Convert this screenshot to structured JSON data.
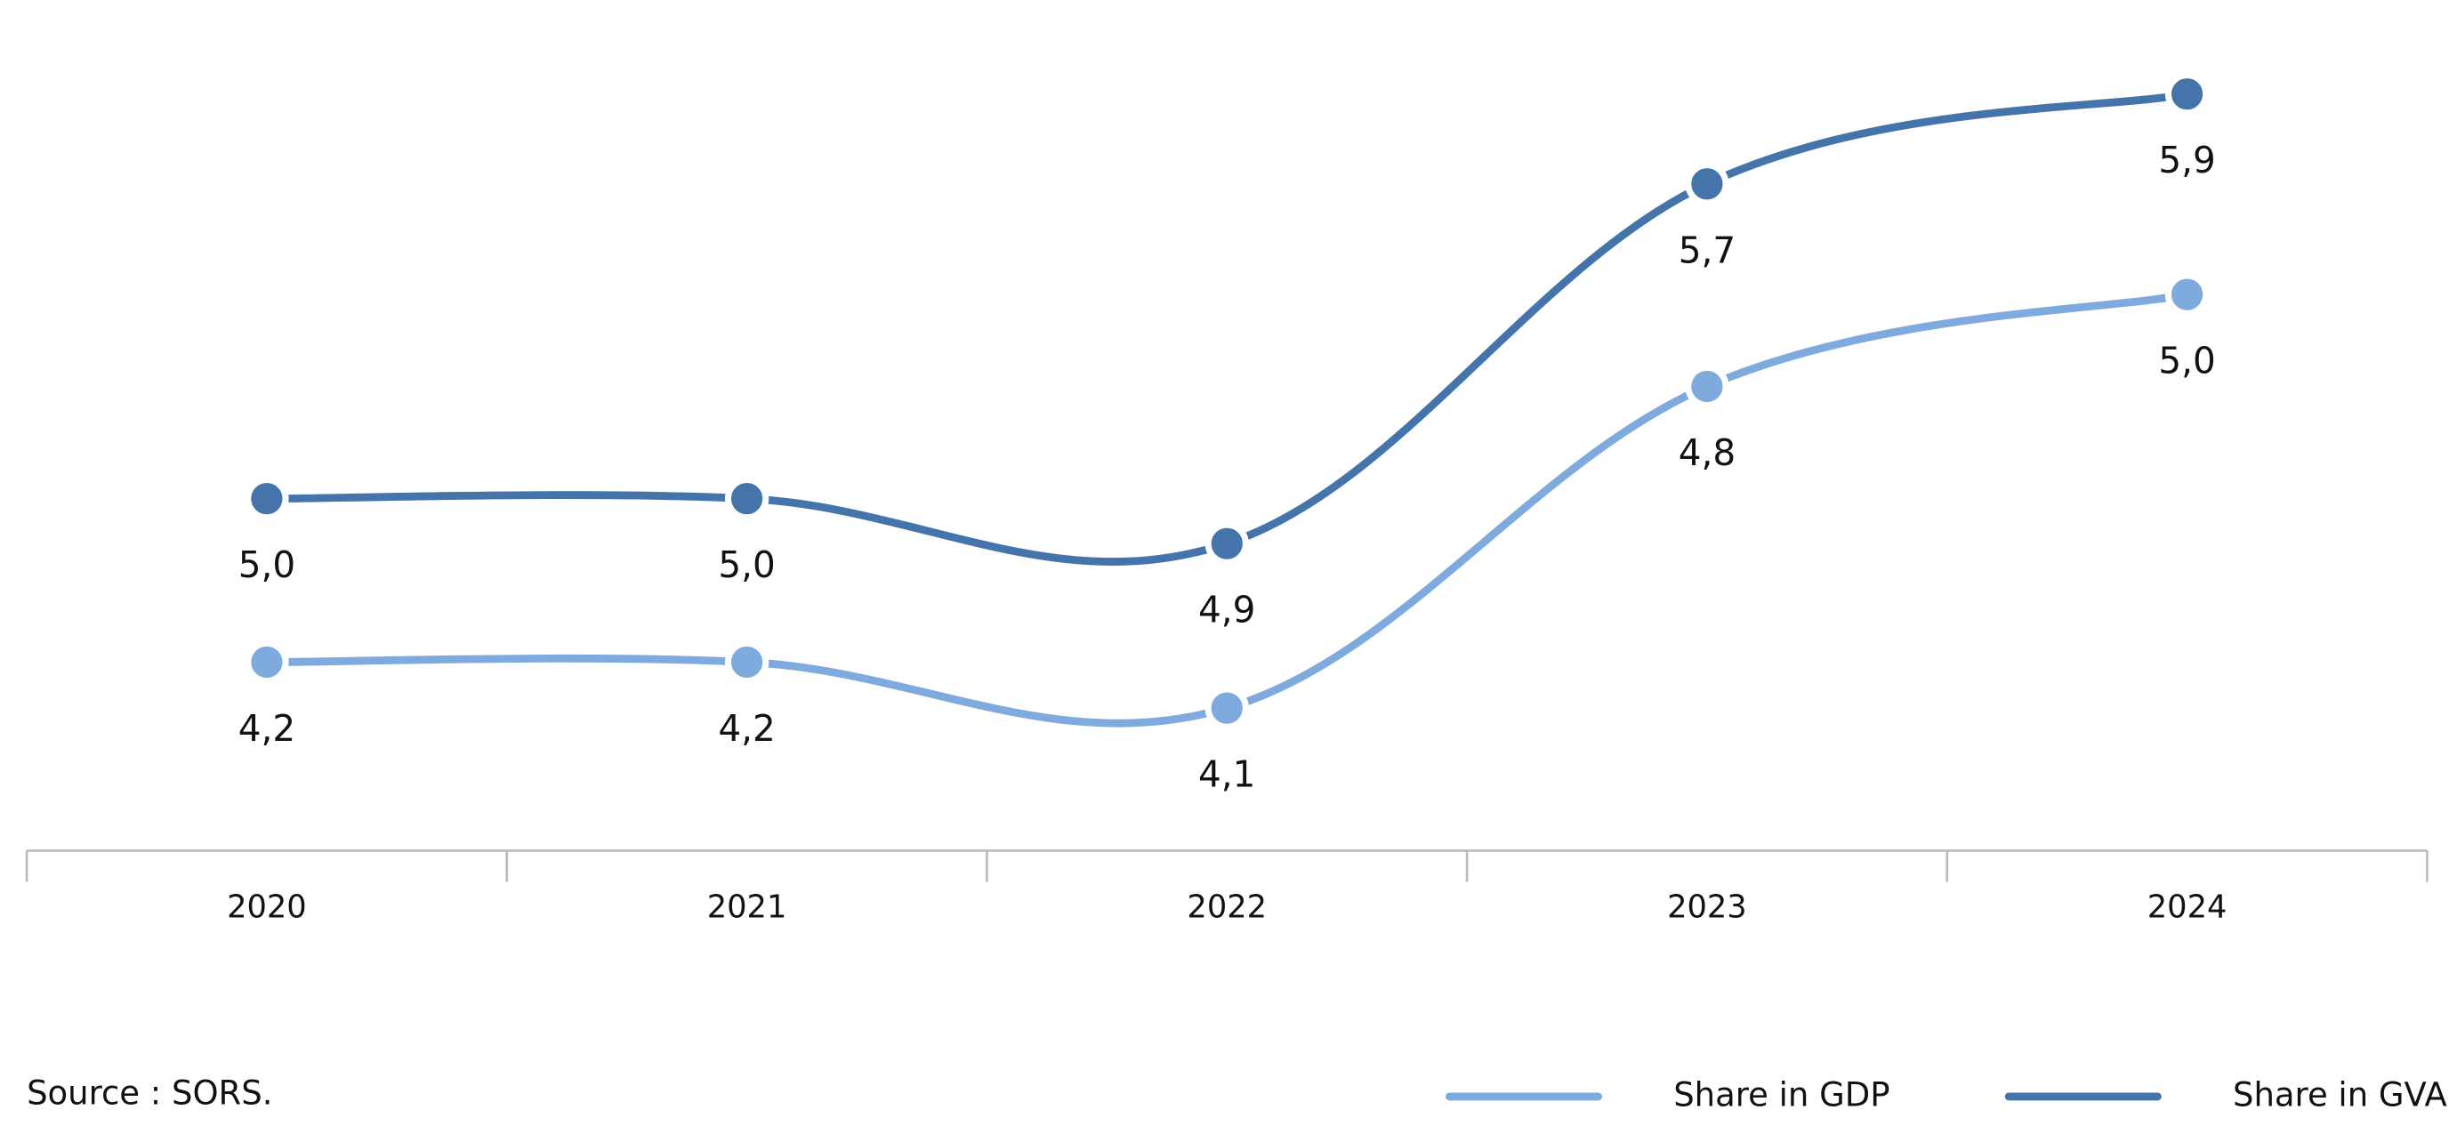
{
  "chart_data": {
    "type": "line",
    "categories": [
      "2020",
      "2021",
      "2022",
      "2023",
      "2024"
    ],
    "series": [
      {
        "name": "Share in GDP",
        "color": "#7eaadd",
        "values": [
          4.2,
          4.2,
          4.1,
          4.8,
          5.0
        ],
        "value_labels": [
          "4,2",
          "4,2",
          "4,1",
          "4,8",
          "5,0"
        ]
      },
      {
        "name": "Share in GVA",
        "color": "#4574aa",
        "values": [
          5.0,
          5.0,
          4.9,
          5.7,
          5.9
        ],
        "value_labels": [
          "5,0",
          "5,0",
          "4,9",
          "5,7",
          "5,9"
        ]
      }
    ],
    "source": "Source : SORS.",
    "legend": "bottom-right"
  }
}
